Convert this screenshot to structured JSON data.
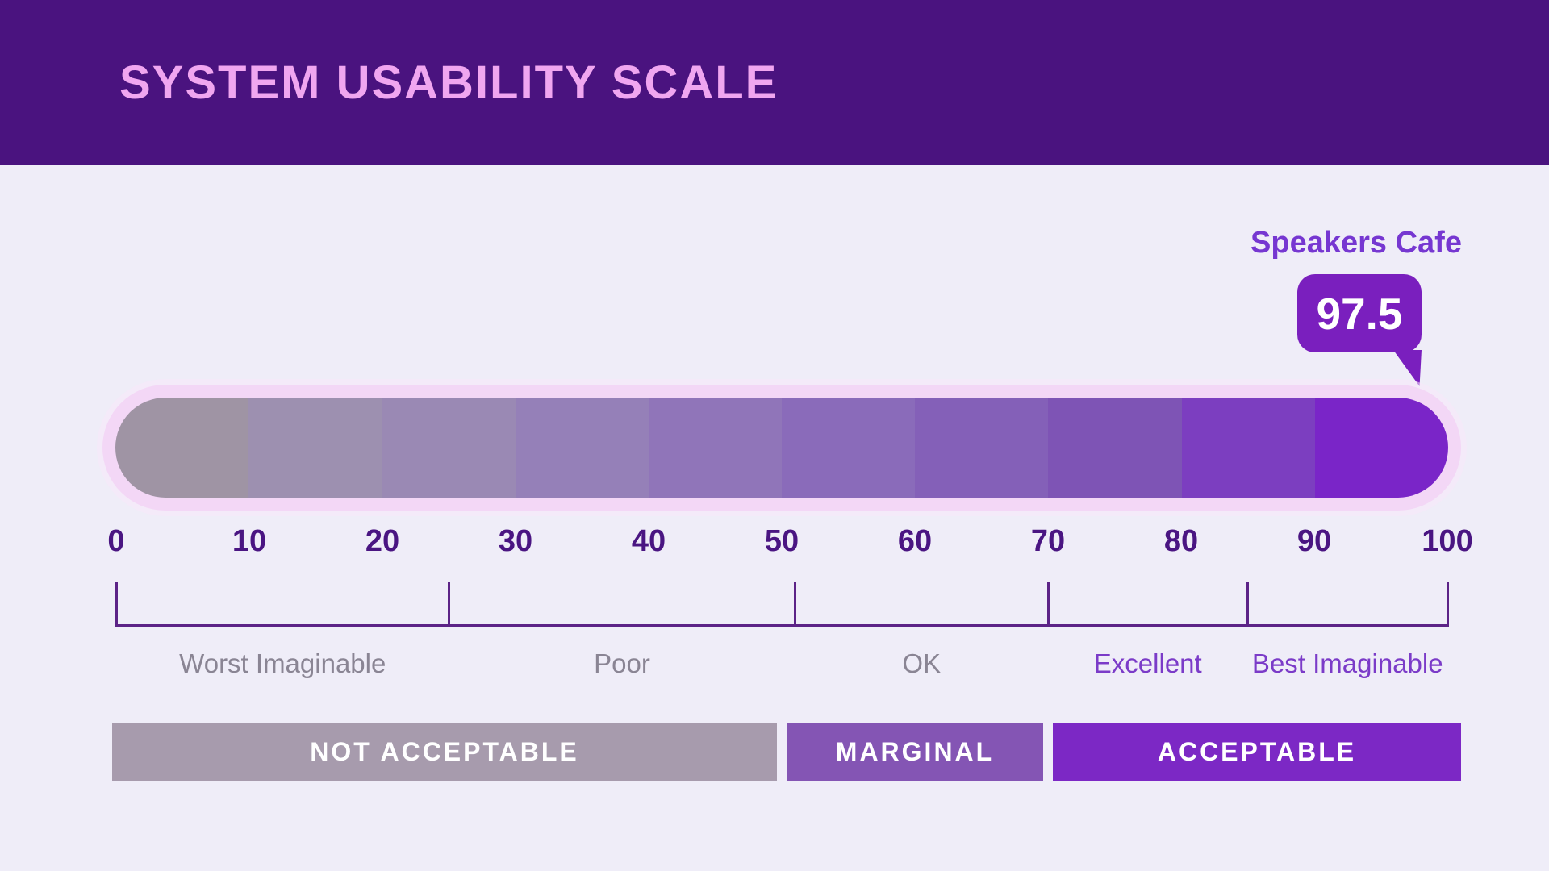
{
  "header": {
    "title": "SYSTEM USABILITY SCALE"
  },
  "score_callout": {
    "team_label": "Speakers Cafe",
    "score_value": "97.5"
  },
  "colors": {
    "page_background": "#EFEDF8",
    "header_background": "#4A137F",
    "header_text": "#F0A6F0",
    "team_label_text": "#7637D1",
    "score_bubble": "#7A1FBE",
    "score_bubble_text": "#FFFFFF",
    "track_ring": "#F3D7F6",
    "axis_tick_text": "#4A1582",
    "bracket_line": "#5C2387"
  },
  "chart_data": {
    "type": "bar",
    "variant": "linear-gauge",
    "title": "SYSTEM USABILITY SCALE",
    "score": {
      "name": "Speakers Cafe",
      "value": 97.5,
      "value_label": "97.5"
    },
    "axis": {
      "min": 0,
      "max": 100,
      "ticks": [
        0,
        10,
        20,
        30,
        40,
        50,
        60,
        70,
        80,
        90,
        100
      ]
    },
    "segments": [
      {
        "from": 0,
        "to": 10,
        "color": "#9F94A4"
      },
      {
        "from": 10,
        "to": 20,
        "color": "#9D90B0"
      },
      {
        "from": 20,
        "to": 30,
        "color": "#9A89B4"
      },
      {
        "from": 30,
        "to": 40,
        "color": "#9580B8"
      },
      {
        "from": 40,
        "to": 50,
        "color": "#9075B9"
      },
      {
        "from": 50,
        "to": 60,
        "color": "#8A6BBA"
      },
      {
        "from": 60,
        "to": 70,
        "color": "#8460B8"
      },
      {
        "from": 70,
        "to": 80,
        "color": "#7E54B5"
      },
      {
        "from": 80,
        "to": 90,
        "color": "#7C3EC0"
      },
      {
        "from": 90,
        "to": 100,
        "color": "#7A25C8"
      }
    ],
    "adjective_zones": [
      {
        "label": "Worst Imaginable",
        "from": 0,
        "to": 25,
        "label_color": "#8A8594"
      },
      {
        "label": "Poor",
        "from": 25,
        "to": 51,
        "label_color": "#8A8594"
      },
      {
        "label": "OK",
        "from": 51,
        "to": 70,
        "label_color": "#8A8594"
      },
      {
        "label": "Excellent",
        "from": 70,
        "to": 85,
        "label_color": "#7B3BC8"
      },
      {
        "label": "Best Imaginable",
        "from": 85,
        "to": 100,
        "label_color": "#7B3BC8"
      }
    ],
    "acceptability_zones": [
      {
        "label": "NOT ACCEPTABLE",
        "from": 0,
        "to": 50,
        "color": "#A79BAD",
        "text_color": "#FFFFFF"
      },
      {
        "label": "MARGINAL",
        "from": 50,
        "to": 70,
        "color": "#8455B4",
        "text_color": "#FFFFFF"
      },
      {
        "label": "ACCEPTABLE",
        "from": 70,
        "to": 100,
        "color": "#7C28C5",
        "text_color": "#FFFFFF"
      }
    ]
  }
}
